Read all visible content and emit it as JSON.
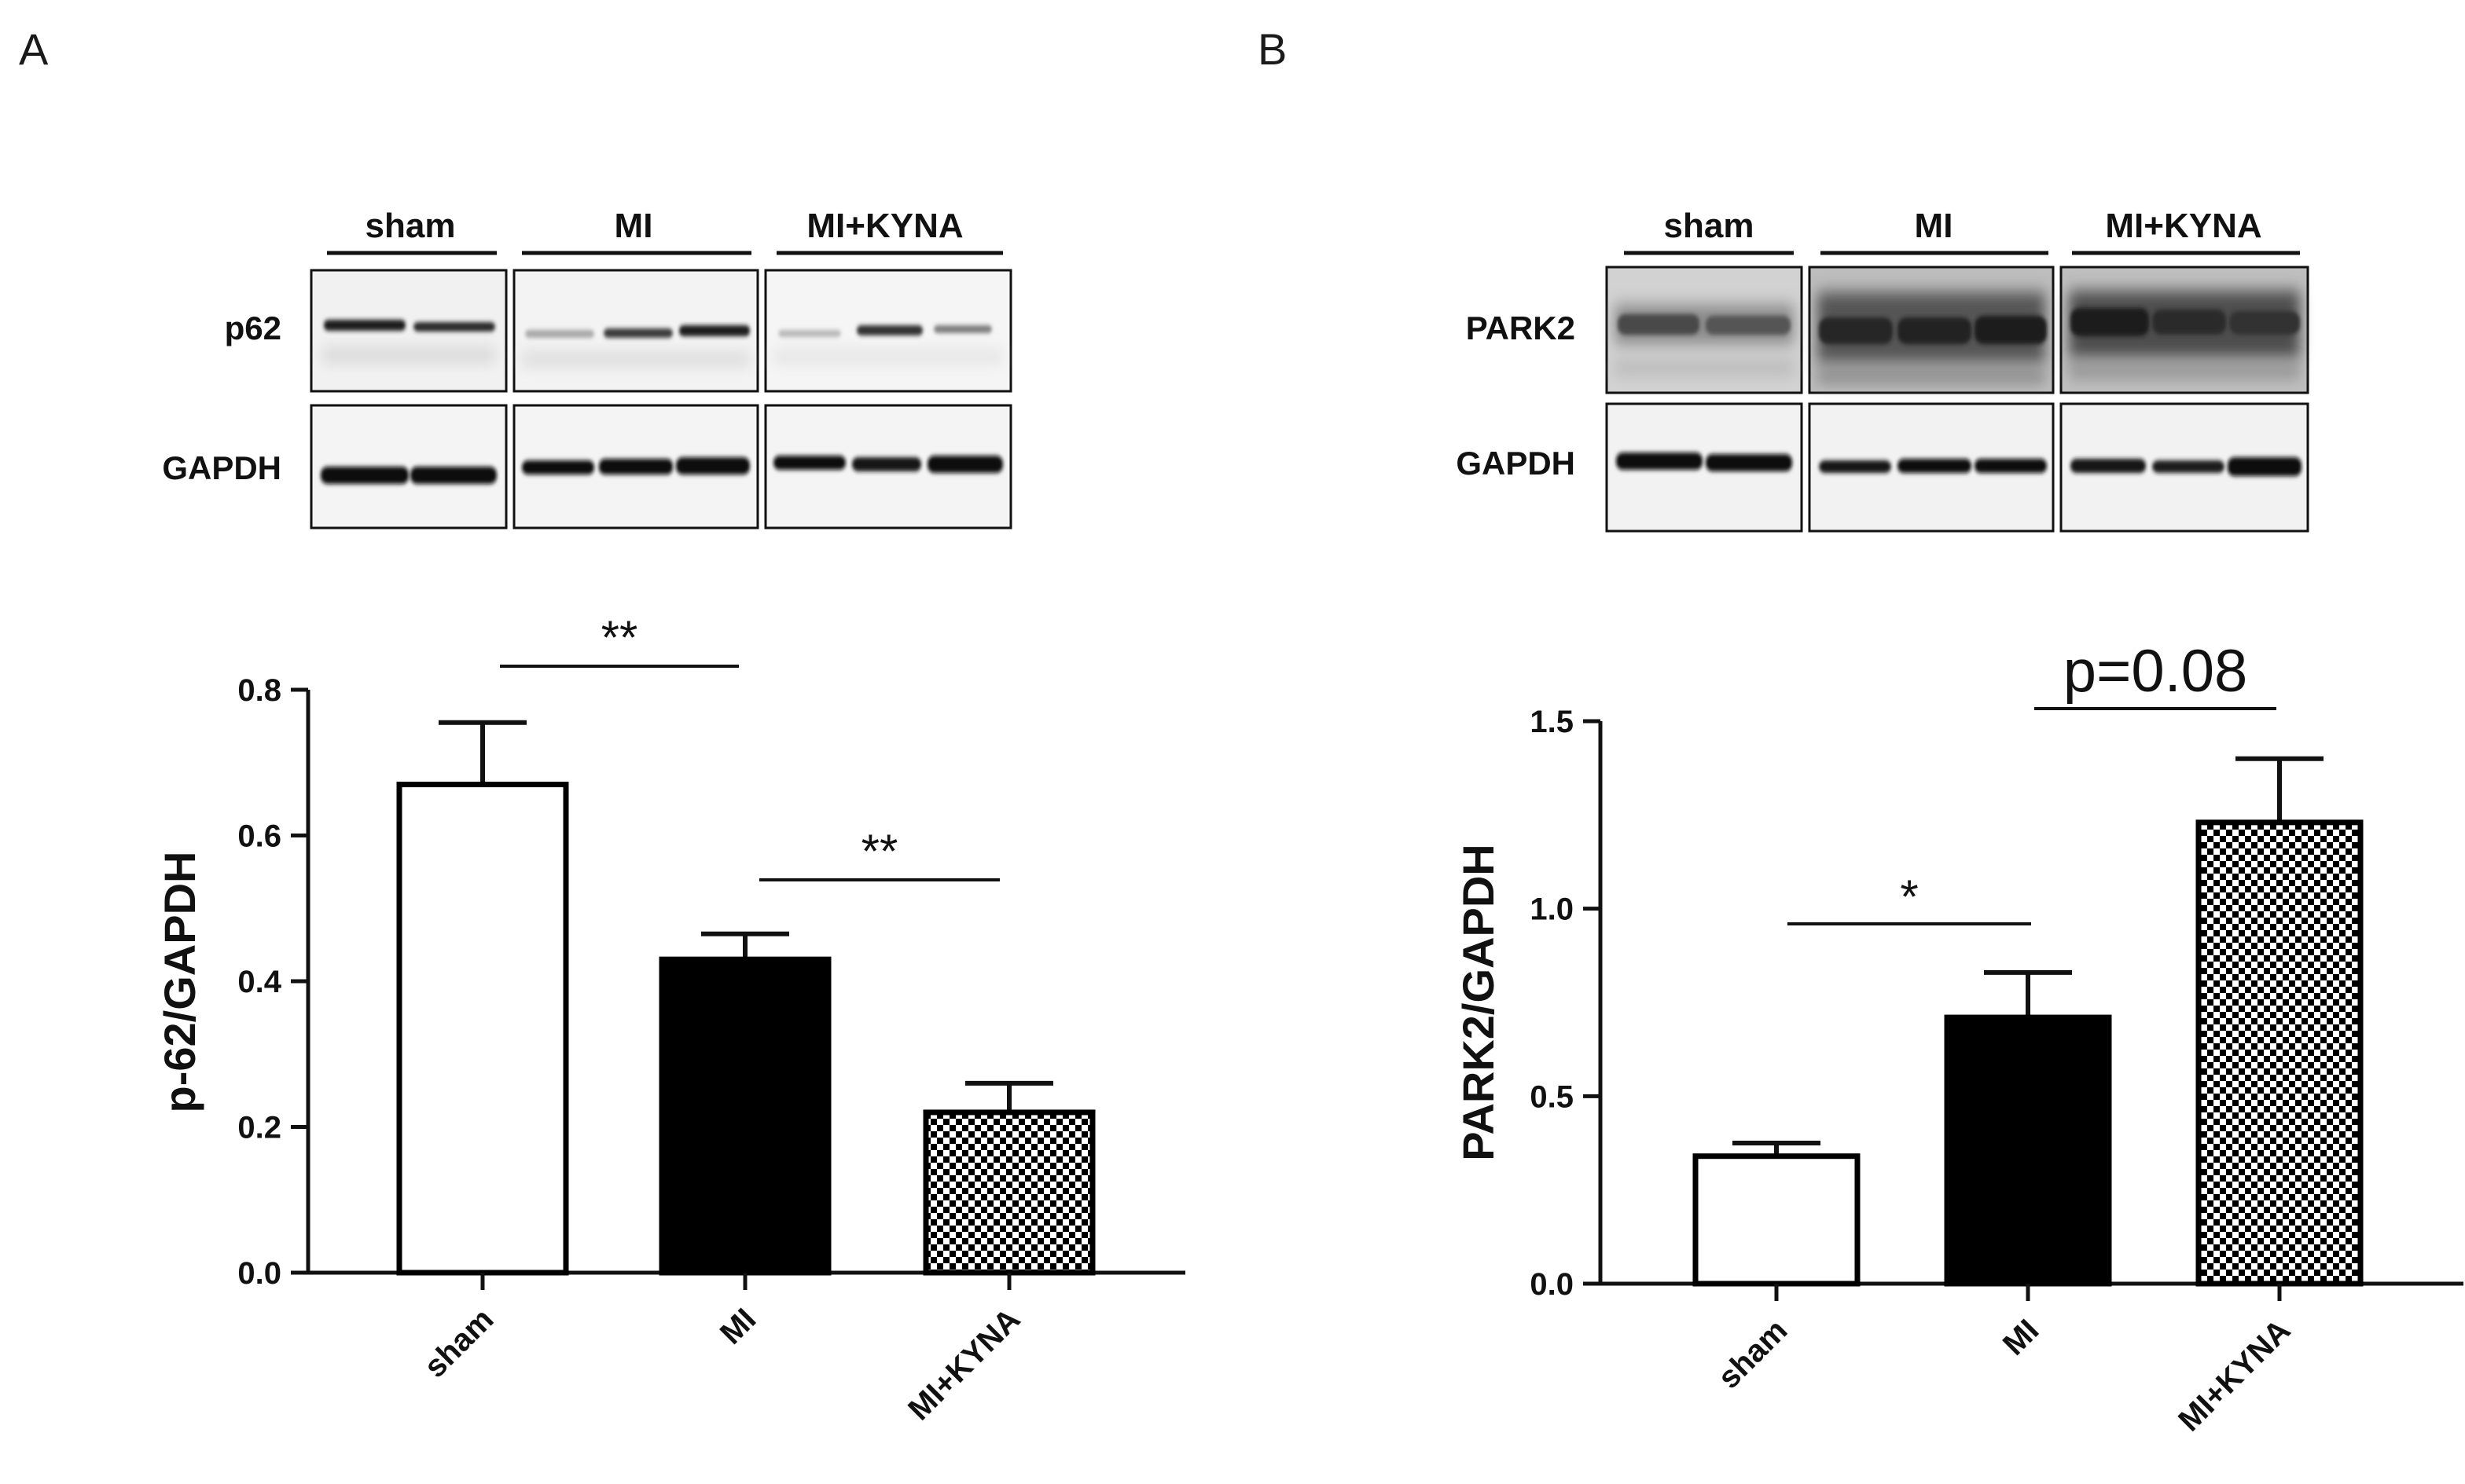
{
  "panels": [
    {
      "letter": "A",
      "blot": {
        "groups": [
          "sham",
          "MI",
          "MI+KYNA"
        ],
        "rows": [
          "p62",
          "GAPDH"
        ]
      }
    },
    {
      "letter": "B",
      "blot": {
        "groups": [
          "sham",
          "MI",
          "MI+KYNA"
        ],
        "rows": [
          "PARK2",
          "GAPDH"
        ]
      }
    }
  ],
  "colors": {
    "ink": "#111111",
    "bar_open": "#ffffff",
    "bar_solid": "#000000"
  },
  "chart_data": [
    {
      "type": "bar",
      "panel": "A",
      "categories": [
        "sham",
        "MI",
        "MI+KYNA"
      ],
      "values": [
        0.67,
        0.43,
        0.22
      ],
      "errors": [
        0.085,
        0.035,
        0.04
      ],
      "fills": [
        "white",
        "black",
        "checkered"
      ],
      "ylabel": "p-62/GAPDH",
      "ylim": [
        0,
        0.8
      ],
      "yticks": [
        "0.0",
        "0.2",
        "0.4",
        "0.6",
        "0.8"
      ],
      "ytick_values": [
        0,
        0.2,
        0.4,
        0.6,
        0.8
      ],
      "annotations": [
        {
          "from": "sham",
          "to": "MI",
          "text": "**"
        },
        {
          "from": "MI",
          "to": "MI+KYNA",
          "text": "**"
        }
      ]
    },
    {
      "type": "bar",
      "panel": "B",
      "categories": [
        "sham",
        "MI",
        "MI+KYNA"
      ],
      "values": [
        0.34,
        0.71,
        1.23
      ],
      "errors": [
        0.035,
        0.12,
        0.17
      ],
      "fills": [
        "white",
        "black",
        "checkered"
      ],
      "ylabel": "PARK2/GAPDH",
      "ylim": [
        0,
        1.5
      ],
      "yticks": [
        "0.0",
        "0.5",
        "1.0",
        "1.5"
      ],
      "ytick_values": [
        0,
        0.5,
        1.0,
        1.5
      ],
      "annotations": [
        {
          "from": "sham",
          "to": "MI",
          "text": "*"
        },
        {
          "from": "MI",
          "to": "MI+KYNA",
          "text": "p=0.08"
        }
      ]
    }
  ]
}
